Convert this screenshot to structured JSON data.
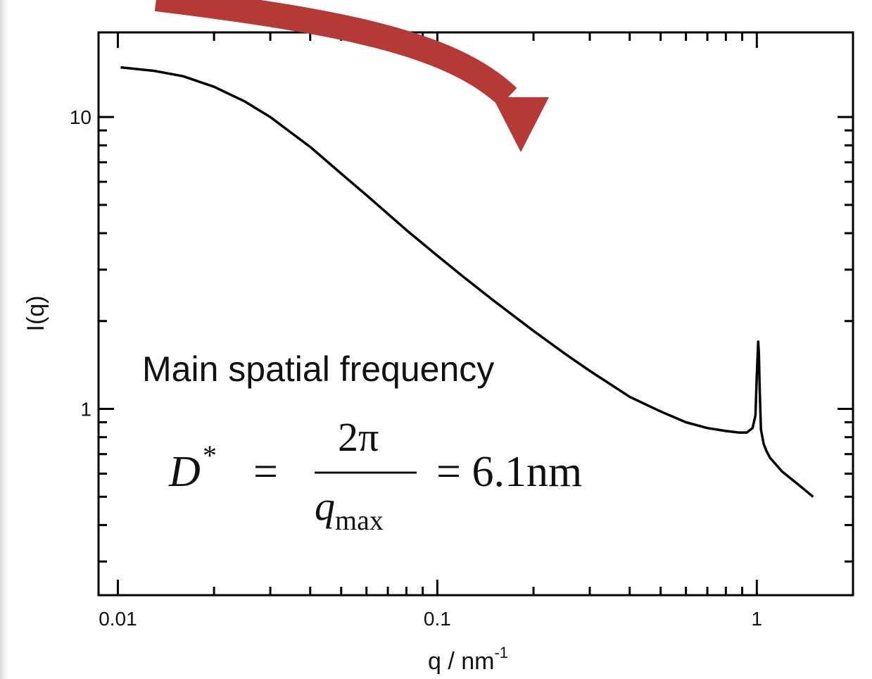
{
  "chart_data": {
    "type": "line",
    "title": "",
    "xlabel": "q / nm",
    "xlabel_superscript": "-1",
    "ylabel": "I(q)",
    "xscale": "log",
    "yscale": "log",
    "xlim": [
      0.0087,
      2.0
    ],
    "ylim": [
      0.23,
      19.5
    ],
    "x_ticks": [
      0.01,
      0.1,
      1
    ],
    "x_tick_labels": [
      "0.01",
      "0.1",
      "1"
    ],
    "y_ticks": [
      1,
      10
    ],
    "y_tick_labels": [
      "1",
      "10"
    ],
    "grid": false,
    "legend": "none",
    "series": [
      {
        "color": "#000000",
        "x": [
          0.0102,
          0.013,
          0.016,
          0.02,
          0.025,
          0.03,
          0.04,
          0.05,
          0.06,
          0.08,
          0.1,
          0.12,
          0.15,
          0.2,
          0.25,
          0.3,
          0.4,
          0.5,
          0.6,
          0.7,
          0.8,
          0.88,
          0.93,
          0.97,
          0.99,
          1.0,
          1.01,
          1.015,
          1.02,
          1.03,
          1.05,
          1.07,
          1.1,
          1.2,
          1.35,
          1.5
        ],
        "y": [
          14.8,
          14.4,
          13.8,
          12.7,
          11.3,
          10.0,
          7.9,
          6.4,
          5.4,
          4.1,
          3.35,
          2.85,
          2.35,
          1.85,
          1.55,
          1.35,
          1.1,
          0.98,
          0.9,
          0.86,
          0.84,
          0.83,
          0.83,
          0.86,
          0.95,
          1.3,
          1.7,
          1.55,
          1.2,
          0.85,
          0.76,
          0.72,
          0.68,
          0.61,
          0.55,
          0.5
        ]
      }
    ],
    "annotations": {
      "text": "Main spatial frequency",
      "formula": {
        "lhs": "D",
        "lhs_sup": "*",
        "equals": "=",
        "numerator": "2π",
        "denominator": "q",
        "denominator_sub": "max",
        "rhs": "= 6.1nm"
      },
      "arrow_color": "#b53a36"
    }
  }
}
